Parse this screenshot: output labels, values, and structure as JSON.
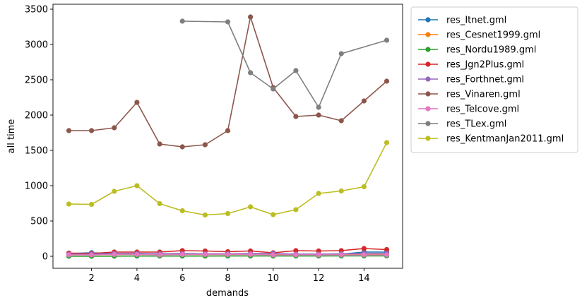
{
  "chart_data": {
    "type": "line",
    "title": "",
    "xlabel": "demands",
    "ylabel": "all time",
    "xlim": [
      0.3,
      15.7
    ],
    "ylim": [
      -170,
      3570
    ],
    "xticks": [
      2,
      4,
      6,
      8,
      10,
      12,
      14
    ],
    "yticks": [
      0,
      500,
      1000,
      1500,
      2000,
      2500,
      3000,
      3500
    ],
    "grid": false,
    "legend_position": "outside-right",
    "series": [
      {
        "name": "res_Itnet.gml",
        "color": "#1f77b4",
        "x": [
          1,
          2,
          3,
          4,
          5,
          6,
          7,
          8,
          9,
          10,
          11,
          12,
          13,
          14,
          15
        ],
        "y": [
          40,
          50,
          40,
          40,
          35,
          35,
          30,
          30,
          35,
          35,
          30,
          30,
          30,
          60,
          60
        ]
      },
      {
        "name": "res_Cesnet1999.gml",
        "color": "#ff7f0e",
        "x": [
          1,
          2,
          3,
          4,
          5,
          6,
          7,
          8,
          9,
          10,
          11,
          12,
          13,
          14,
          15
        ],
        "y": [
          20,
          20,
          25,
          25,
          25,
          25,
          25,
          25,
          25,
          25,
          25,
          25,
          25,
          30,
          30
        ]
      },
      {
        "name": "res_Nordu1989.gml",
        "color": "#2ca02c",
        "x": [
          1,
          2,
          3,
          4,
          5,
          6,
          7,
          8,
          9,
          10,
          11,
          12,
          13,
          14,
          15
        ],
        "y": [
          0,
          0,
          2,
          3,
          3,
          3,
          3,
          4,
          4,
          4,
          4,
          4,
          5,
          5,
          6
        ]
      },
      {
        "name": "res_Jgn2Plus.gml",
        "color": "#d62728",
        "x": [
          1,
          2,
          3,
          4,
          5,
          6,
          7,
          8,
          9,
          10,
          11,
          12,
          13,
          14,
          15
        ],
        "y": [
          45,
          40,
          60,
          60,
          60,
          80,
          75,
          65,
          75,
          50,
          80,
          75,
          80,
          110,
          95
        ]
      },
      {
        "name": "res_Forthnet.gml",
        "color": "#9467bd",
        "x": [
          1,
          2,
          3,
          4,
          5,
          6,
          7,
          8,
          9,
          10,
          11,
          12,
          13,
          14,
          15
        ],
        "y": [
          30,
          30,
          40,
          40,
          35,
          40,
          35,
          35,
          40,
          40,
          30,
          30,
          35,
          40,
          40
        ]
      },
      {
        "name": "res_Vinaren.gml",
        "color": "#8c564b",
        "x": [
          1,
          2,
          3,
          4,
          5,
          6,
          7,
          8,
          9,
          10,
          11,
          12,
          13,
          14,
          15
        ],
        "y": [
          1780,
          1780,
          1820,
          2180,
          1590,
          1550,
          1580,
          1780,
          3390,
          2390,
          1980,
          2000,
          1920,
          2200,
          2480
        ]
      },
      {
        "name": "res_Telcove.gml",
        "color": "#e377c2",
        "x": [
          1,
          2,
          3,
          4,
          5,
          6,
          7,
          8,
          9,
          10,
          11,
          12,
          13,
          14,
          15
        ],
        "y": [
          20,
          20,
          25,
          25,
          20,
          25,
          25,
          25,
          25,
          20,
          20,
          20,
          20,
          20,
          20
        ]
      },
      {
        "name": "res_TLex.gml",
        "color": "#7f7f7f",
        "x": [
          6,
          8,
          9,
          10,
          11,
          12,
          13,
          15
        ],
        "y": [
          3330,
          3320,
          2600,
          2370,
          2630,
          2110,
          2870,
          3060
        ]
      },
      {
        "name": "res_KentmanJan2011.gml",
        "color": "#bcbd22",
        "x": [
          1,
          2,
          3,
          4,
          5,
          6,
          7,
          8,
          9,
          10,
          11,
          12,
          13,
          14,
          15
        ],
        "y": [
          740,
          735,
          920,
          1000,
          745,
          645,
          585,
          605,
          700,
          590,
          660,
          890,
          925,
          985,
          1610
        ]
      }
    ]
  }
}
